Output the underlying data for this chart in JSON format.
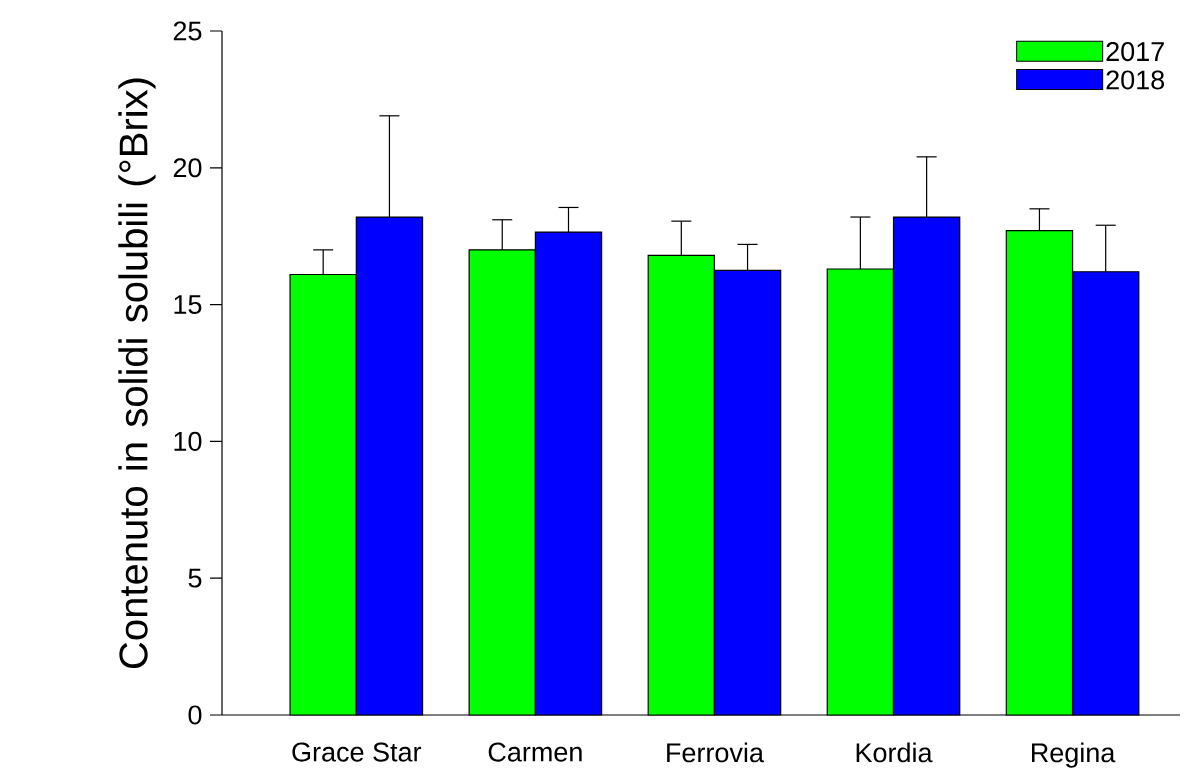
{
  "chart_data": {
    "type": "bar",
    "ylabel": "Contenuto in solidi solubili (°Brix)",
    "categories": [
      "Grace Star",
      "Carmen",
      "Ferrovia",
      "Kordia",
      "Regina"
    ],
    "series": [
      {
        "name": "2017",
        "color": "#00ff00",
        "values": [
          16.1,
          17.0,
          16.8,
          16.3,
          17.7
        ],
        "errors": [
          0.9,
          1.1,
          1.25,
          1.9,
          0.8
        ]
      },
      {
        "name": "2018",
        "color": "#0000ff",
        "values": [
          18.2,
          17.65,
          16.25,
          18.2,
          16.2
        ],
        "errors": [
          3.7,
          0.9,
          0.95,
          2.2,
          1.7
        ]
      }
    ],
    "ylim": [
      0,
      25
    ],
    "yticks": [
      0,
      5,
      10,
      15,
      20,
      25
    ],
    "legend": "top right",
    "grid": false
  }
}
